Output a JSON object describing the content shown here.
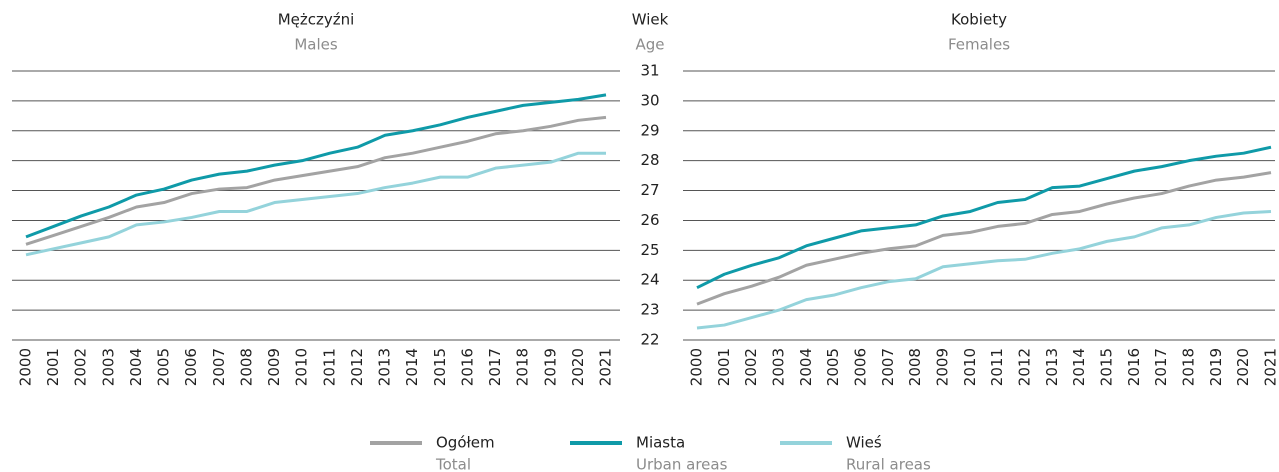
{
  "y_axis_label": {
    "text": "Wiek",
    "text_en": "Age"
  },
  "legend": [
    {
      "name": "Ogółem",
      "name_en": "Total",
      "color": "#a3a3a3"
    },
    {
      "name": "Miasta",
      "name_en": "Urban areas",
      "color": "#0f9aa8"
    },
    {
      "name": "Wieś",
      "name_en": "Rural areas",
      "color": "#94d3db"
    }
  ],
  "chart_data": [
    {
      "type": "line",
      "title": "Mężczyźni",
      "subtitle": "Males",
      "categories": [
        "2000",
        "2001",
        "2002",
        "2003",
        "2004",
        "2005",
        "2006",
        "2007",
        "2008",
        "2009",
        "2010",
        "2011",
        "2012",
        "2013",
        "2014",
        "2015",
        "2016",
        "2017",
        "2018",
        "2019",
        "2020",
        "2021"
      ],
      "series": [
        {
          "values": [
            25.2,
            25.5,
            25.8,
            26.1,
            26.45,
            26.6,
            26.9,
            27.05,
            27.1,
            27.35,
            27.5,
            27.65,
            27.8,
            28.1,
            28.25,
            28.45,
            28.65,
            28.9,
            29.0,
            29.15,
            29.35,
            29.45
          ]
        },
        {
          "values": [
            25.45,
            25.8,
            26.15,
            26.45,
            26.85,
            27.05,
            27.35,
            27.55,
            27.65,
            27.85,
            28.0,
            28.25,
            28.45,
            28.85,
            29.0,
            29.2,
            29.45,
            29.65,
            29.85,
            29.95,
            30.05,
            30.2
          ]
        },
        {
          "values": [
            24.85,
            25.05,
            25.25,
            25.45,
            25.85,
            25.95,
            26.1,
            26.3,
            26.3,
            26.6,
            26.7,
            26.8,
            26.9,
            27.1,
            27.25,
            27.45,
            27.45,
            27.75,
            27.85,
            27.95,
            28.25,
            28.25
          ]
        }
      ],
      "ylim": [
        22,
        31
      ],
      "yticks": [
        22,
        23,
        24,
        25,
        26,
        27,
        28,
        29,
        30,
        31
      ],
      "grid": true
    },
    {
      "type": "line",
      "title": "Kobiety",
      "subtitle": "Females",
      "categories": [
        "2000",
        "2001",
        "2002",
        "2003",
        "2004",
        "2005",
        "2006",
        "2007",
        "2008",
        "2009",
        "2010",
        "2011",
        "2012",
        "2013",
        "2014",
        "2015",
        "2016",
        "2017",
        "2018",
        "2019",
        "2020",
        "2021"
      ],
      "series": [
        {
          "values": [
            23.2,
            23.55,
            23.8,
            24.1,
            24.5,
            24.7,
            24.9,
            25.05,
            25.15,
            25.5,
            25.6,
            25.8,
            25.9,
            26.2,
            26.3,
            26.55,
            26.75,
            26.9,
            27.15,
            27.35,
            27.45,
            27.6
          ]
        },
        {
          "values": [
            23.75,
            24.2,
            24.5,
            24.75,
            25.15,
            25.4,
            25.65,
            25.75,
            25.85,
            26.15,
            26.3,
            26.6,
            26.7,
            27.1,
            27.15,
            27.4,
            27.65,
            27.8,
            28.0,
            28.15,
            28.25,
            28.45
          ]
        },
        {
          "values": [
            22.4,
            22.5,
            22.75,
            23.0,
            23.35,
            23.5,
            23.75,
            23.95,
            24.05,
            24.45,
            24.55,
            24.65,
            24.7,
            24.9,
            25.05,
            25.3,
            25.45,
            25.75,
            25.85,
            26.1,
            26.25,
            26.3
          ]
        }
      ],
      "ylim": [
        22,
        31
      ],
      "yticks": [
        22,
        23,
        24,
        25,
        26,
        27,
        28,
        29,
        30,
        31
      ],
      "grid": true
    }
  ]
}
